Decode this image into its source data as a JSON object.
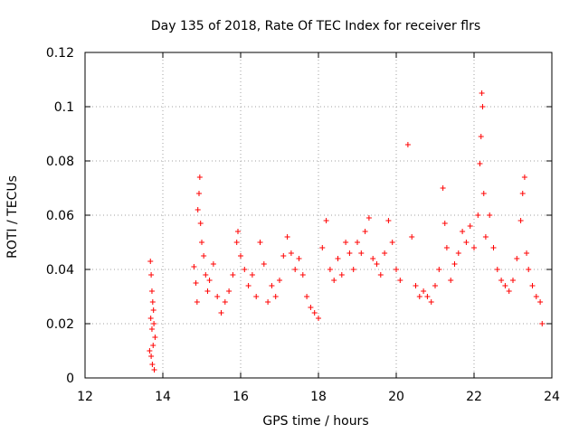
{
  "chart_data": {
    "type": "scatter",
    "title": "Day 135 of 2018, Rate Of TEC Index for receiver flrs",
    "xlabel": "GPS time / hours",
    "ylabel": "ROTI / TECUs",
    "xlim": [
      12,
      24
    ],
    "ylim": [
      0,
      0.12
    ],
    "xticks": [
      12,
      14,
      16,
      18,
      20,
      22,
      24
    ],
    "xtick_labels": [
      "12",
      "14",
      "16",
      "18",
      "20",
      "22",
      "24"
    ],
    "yticks": [
      0,
      0.02,
      0.04,
      0.06,
      0.08,
      0.1,
      0.12
    ],
    "ytick_labels": [
      "0",
      "0.02",
      "0.04",
      "0.06",
      "0.08",
      "0.1",
      "0.12"
    ],
    "grid": true,
    "marker": "+",
    "color": "#ff0000",
    "series": [
      {
        "name": "ROTI",
        "points": [
          [
            13.68,
            0.043
          ],
          [
            13.7,
            0.038
          ],
          [
            13.72,
            0.032
          ],
          [
            13.74,
            0.028
          ],
          [
            13.76,
            0.025
          ],
          [
            13.72,
            0.018
          ],
          [
            13.75,
            0.012
          ],
          [
            13.7,
            0.008
          ],
          [
            13.73,
            0.005
          ],
          [
            13.78,
            0.003
          ],
          [
            13.8,
            0.015
          ],
          [
            13.66,
            0.01
          ],
          [
            13.69,
            0.022
          ],
          [
            13.77,
            0.02
          ],
          [
            14.8,
            0.041
          ],
          [
            14.85,
            0.035
          ],
          [
            14.88,
            0.028
          ],
          [
            14.9,
            0.062
          ],
          [
            14.93,
            0.068
          ],
          [
            14.95,
            0.074
          ],
          [
            14.97,
            0.057
          ],
          [
            15.0,
            0.05
          ],
          [
            15.05,
            0.045
          ],
          [
            15.1,
            0.038
          ],
          [
            15.15,
            0.032
          ],
          [
            15.2,
            0.036
          ],
          [
            15.3,
            0.042
          ],
          [
            15.4,
            0.03
          ],
          [
            15.5,
            0.024
          ],
          [
            15.6,
            0.028
          ],
          [
            15.7,
            0.032
          ],
          [
            15.8,
            0.038
          ],
          [
            15.9,
            0.05
          ],
          [
            15.93,
            0.054
          ],
          [
            16.0,
            0.045
          ],
          [
            16.1,
            0.04
          ],
          [
            16.2,
            0.034
          ],
          [
            16.3,
            0.038
          ],
          [
            16.4,
            0.03
          ],
          [
            16.5,
            0.05
          ],
          [
            16.6,
            0.042
          ],
          [
            16.7,
            0.028
          ],
          [
            16.8,
            0.034
          ],
          [
            16.9,
            0.03
          ],
          [
            17.0,
            0.036
          ],
          [
            17.1,
            0.045
          ],
          [
            17.2,
            0.052
          ],
          [
            17.3,
            0.046
          ],
          [
            17.4,
            0.04
          ],
          [
            17.5,
            0.044
          ],
          [
            17.6,
            0.038
          ],
          [
            17.7,
            0.03
          ],
          [
            17.8,
            0.026
          ],
          [
            17.9,
            0.024
          ],
          [
            18.0,
            0.022
          ],
          [
            18.1,
            0.048
          ],
          [
            18.2,
            0.058
          ],
          [
            18.3,
            0.04
          ],
          [
            18.4,
            0.036
          ],
          [
            18.5,
            0.044
          ],
          [
            18.6,
            0.038
          ],
          [
            18.7,
            0.05
          ],
          [
            18.8,
            0.046
          ],
          [
            18.9,
            0.04
          ],
          [
            19.0,
            0.05
          ],
          [
            19.1,
            0.046
          ],
          [
            19.2,
            0.054
          ],
          [
            19.3,
            0.059
          ],
          [
            19.4,
            0.044
          ],
          [
            19.5,
            0.042
          ],
          [
            19.6,
            0.038
          ],
          [
            19.7,
            0.046
          ],
          [
            19.8,
            0.058
          ],
          [
            19.9,
            0.05
          ],
          [
            20.0,
            0.04
          ],
          [
            20.1,
            0.036
          ],
          [
            20.3,
            0.086
          ],
          [
            20.4,
            0.052
          ],
          [
            20.5,
            0.034
          ],
          [
            20.6,
            0.03
          ],
          [
            20.7,
            0.032
          ],
          [
            20.8,
            0.03
          ],
          [
            20.9,
            0.028
          ],
          [
            21.0,
            0.034
          ],
          [
            21.1,
            0.04
          ],
          [
            21.2,
            0.07
          ],
          [
            21.25,
            0.057
          ],
          [
            21.3,
            0.048
          ],
          [
            21.4,
            0.036
          ],
          [
            21.5,
            0.042
          ],
          [
            21.6,
            0.046
          ],
          [
            21.7,
            0.054
          ],
          [
            21.8,
            0.05
          ],
          [
            21.9,
            0.056
          ],
          [
            22.0,
            0.048
          ],
          [
            22.1,
            0.06
          ],
          [
            22.15,
            0.079
          ],
          [
            22.18,
            0.089
          ],
          [
            22.2,
            0.105
          ],
          [
            22.22,
            0.1
          ],
          [
            22.25,
            0.068
          ],
          [
            22.3,
            0.052
          ],
          [
            22.4,
            0.06
          ],
          [
            22.5,
            0.048
          ],
          [
            22.6,
            0.04
          ],
          [
            22.7,
            0.036
          ],
          [
            22.8,
            0.034
          ],
          [
            22.9,
            0.032
          ],
          [
            23.0,
            0.036
          ],
          [
            23.1,
            0.044
          ],
          [
            23.2,
            0.058
          ],
          [
            23.25,
            0.068
          ],
          [
            23.3,
            0.074
          ],
          [
            23.35,
            0.046
          ],
          [
            23.4,
            0.04
          ],
          [
            23.5,
            0.034
          ],
          [
            23.6,
            0.03
          ],
          [
            23.7,
            0.028
          ],
          [
            23.75,
            0.02
          ]
        ]
      }
    ]
  }
}
